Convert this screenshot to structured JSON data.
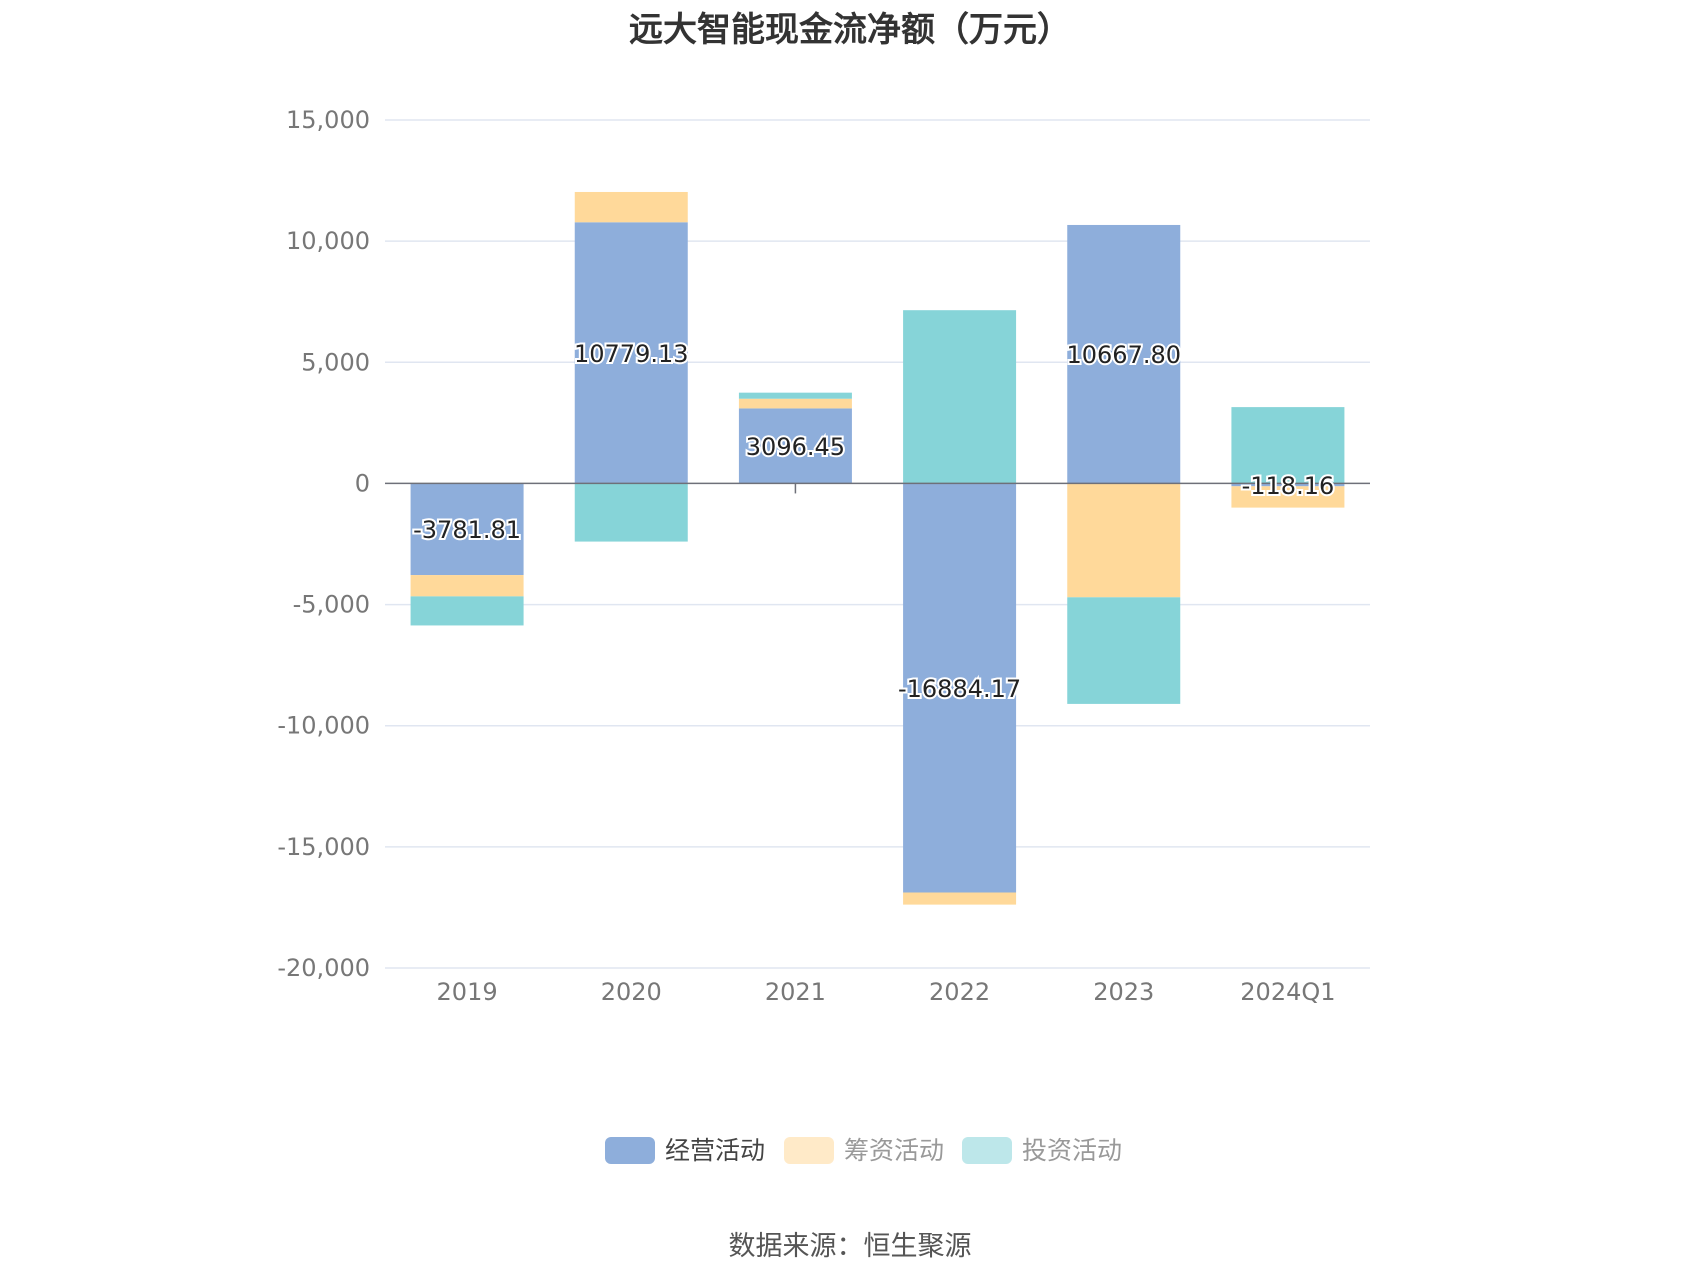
{
  "chart_data": {
    "type": "bar",
    "stacked": true,
    "title": "远大智能现金流净额（万元）",
    "categories": [
      "2019",
      "2020",
      "2021",
      "2022",
      "2023",
      "2024Q1"
    ],
    "series": [
      {
        "name": "经营活动",
        "color": "#8eaedb",
        "values": [
          -3781.81,
          10779.13,
          3096.45,
          -16884.17,
          10667.8,
          -118.16
        ]
      },
      {
        "name": "筹资活动",
        "color": "#ffd99a",
        "values": [
          -880,
          1250,
          400,
          -500,
          -4700,
          -880
        ]
      },
      {
        "name": "投资活动",
        "color": "#86d4d8",
        "values": [
          -1200,
          -2400,
          250,
          7150,
          -4400,
          3150
        ]
      }
    ],
    "data_labels": [
      "-3781.81",
      "10779.13",
      "3096.45",
      "-16884.17",
      "10667.80",
      "-118.16"
    ],
    "y_ticks": [
      "15,000",
      "10,000",
      "5,000",
      "0",
      "-5,000",
      "-10,000",
      "-15,000",
      "-20,000"
    ],
    "ylim": [
      -20000,
      15000
    ],
    "grid": true,
    "legend_position": "bottom",
    "xlabel": "",
    "ylabel": ""
  },
  "source": "数据来源：恒生聚源"
}
